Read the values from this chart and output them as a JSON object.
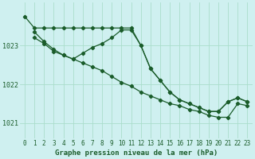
{
  "bg_color": "#cff0f0",
  "grid_color": "#aaddcc",
  "line_color": "#1a5c2a",
  "marker_color": "#1a5c2a",
  "title": "Graphe pression niveau de la mer (hPa)",
  "title_color": "#1a5c2a",
  "ylim": [
    1020.6,
    1024.1
  ],
  "yticks": [
    1021,
    1022,
    1023
  ],
  "xlim": [
    -0.5,
    23.5
  ],
  "xticks": [
    0,
    1,
    2,
    3,
    4,
    5,
    6,
    7,
    8,
    9,
    10,
    11,
    12,
    13,
    14,
    15,
    16,
    17,
    18,
    19,
    20,
    21,
    22,
    23
  ],
  "series1_x": [
    0,
    1,
    2,
    3,
    4,
    5,
    6,
    7,
    8,
    9,
    10,
    11,
    12,
    13,
    14,
    15,
    16,
    17,
    18,
    19,
    20,
    21,
    22,
    23
  ],
  "series1_y": [
    1023.75,
    1023.45,
    1023.45,
    1023.45,
    1023.45,
    1023.45,
    1023.45,
    1023.45,
    1023.45,
    1023.45,
    1023.45,
    1023.45,
    1023.0,
    1022.4,
    1022.1,
    1021.8,
    1021.6,
    1021.5,
    1021.4,
    1021.3,
    1021.3,
    1021.55,
    1021.65,
    1021.55
  ],
  "series2_x": [
    1,
    2,
    3,
    4,
    5,
    6,
    7,
    8,
    9,
    10,
    11,
    12,
    13,
    14,
    15,
    16,
    17,
    18,
    19,
    20,
    21,
    22,
    23
  ],
  "series2_y": [
    1023.2,
    1023.05,
    1022.85,
    1022.75,
    1022.65,
    1022.8,
    1022.95,
    1023.05,
    1023.2,
    1023.4,
    1023.4,
    1023.0,
    1022.4,
    1022.1,
    1021.8,
    1021.6,
    1021.5,
    1021.4,
    1021.3,
    1021.3,
    1021.55,
    1021.65,
    1021.55
  ],
  "series3_x": [
    1,
    2,
    3,
    4,
    5,
    6,
    7,
    8,
    9,
    10,
    11,
    12,
    13,
    14,
    15,
    16,
    17,
    18,
    19,
    20,
    21,
    22,
    23
  ],
  "series3_y": [
    1023.35,
    1023.1,
    1022.9,
    1022.75,
    1022.65,
    1022.55,
    1022.45,
    1022.35,
    1022.2,
    1022.05,
    1021.95,
    1021.8,
    1021.7,
    1021.6,
    1021.5,
    1021.45,
    1021.35,
    1021.3,
    1021.2,
    1021.15,
    1021.15,
    1021.5,
    1021.45
  ],
  "tick_fontsize": 5.5,
  "label_fontsize": 6.5,
  "lw": 0.9,
  "ms": 2.2
}
